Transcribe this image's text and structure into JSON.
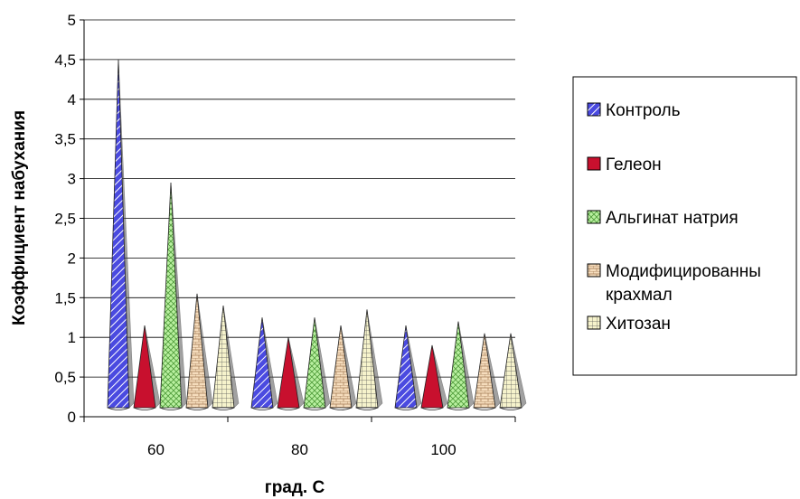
{
  "chart_data": {
    "type": "bar",
    "style": "3d-cone",
    "categories": [
      "60",
      "80",
      "100"
    ],
    "series": [
      {
        "name": "Контроль",
        "values": [
          4.5,
          1.25,
          1.15
        ],
        "color": "#3b3bd6",
        "pattern": "diagonal-stripes"
      },
      {
        "name": "Гелеон",
        "values": [
          1.15,
          1.0,
          0.9
        ],
        "color": "#c8102e",
        "pattern": "solid"
      },
      {
        "name": "Альгинат натрия",
        "values": [
          2.95,
          1.25,
          1.2
        ],
        "color": "#b9f0a0",
        "pattern": "crosshatch"
      },
      {
        "name": "Модифицированный крахмал",
        "values": [
          1.55,
          1.15,
          1.05
        ],
        "color": "#f3d9b5",
        "pattern": "brick"
      },
      {
        "name": "Хитозан",
        "values": [
          1.4,
          1.35,
          1.05
        ],
        "color": "#f4f1c8",
        "pattern": "grid"
      }
    ],
    "xlabel": "град. С",
    "ylabel": "Коэффициент набухания",
    "ylim": [
      0,
      5
    ],
    "yticks": [
      "0",
      "0,5",
      "1",
      "1,5",
      "2",
      "2,5",
      "3",
      "3,5",
      "4",
      "4,5",
      "5"
    ],
    "grid": true,
    "legend_position": "right",
    "legend_labels": [
      "Контроль",
      "Гелеон",
      "Альгинат натрия",
      "Модифицированны",
      "крахмал",
      "Хитозан"
    ]
  }
}
